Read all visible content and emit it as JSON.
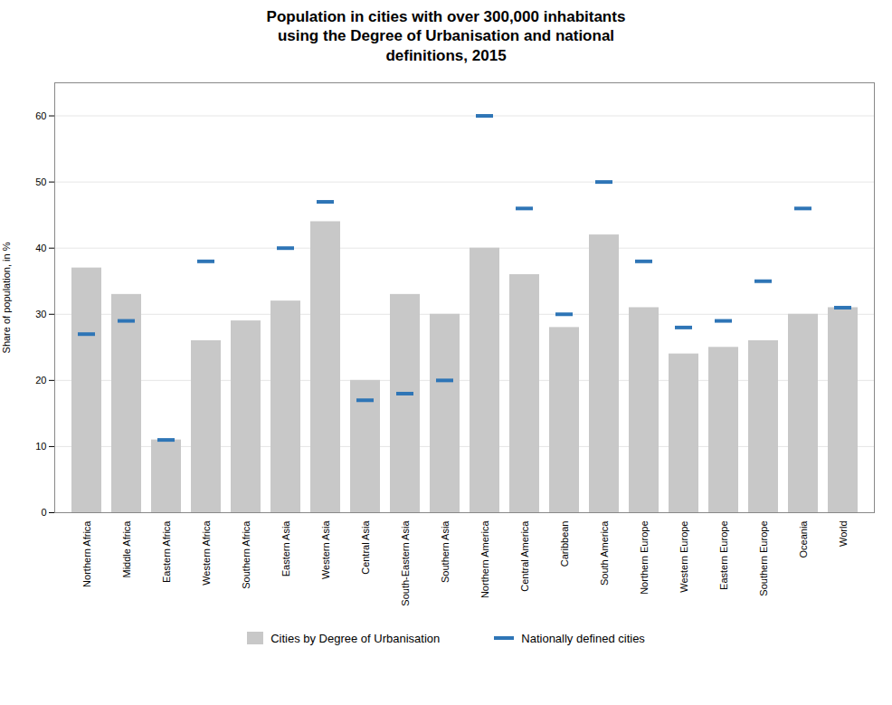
{
  "chart_data": {
    "type": "bar",
    "title": "Population in cities with over 300,000 inhabitants\nusing the Degree of Urbanisation and national\ndefinitions, 2015",
    "ylabel": "Share of population, in %",
    "categories": [
      "Northern Africa",
      "Middle Africa",
      "Eastern Africa",
      "Western Africa",
      "Southern Africa",
      "Eastern Asia",
      "Western Asia",
      "Central Asia",
      "South-Eastern Asia",
      "Southern Asia",
      "Northern America",
      "Central America",
      "Caribbean",
      "South America",
      "Northern Europe",
      "Western Europe",
      "Eastern Europe",
      "Southern Europe",
      "Oceania",
      "World"
    ],
    "series": [
      {
        "name": "Cities by Degree of Urbanisation",
        "type": "bar",
        "color": "#c8c8c8",
        "values": [
          37,
          33,
          11,
          26,
          29,
          32,
          44,
          20,
          33,
          30,
          40,
          36,
          28,
          42,
          31,
          24,
          25,
          26,
          30,
          31
        ]
      },
      {
        "name": "Nationally defined cities",
        "type": "tick",
        "color": "#2e75b6",
        "values": [
          27,
          29,
          11,
          38,
          null,
          40,
          47,
          17,
          18,
          20,
          60,
          46,
          30,
          50,
          38,
          28,
          29,
          35,
          46,
          31
        ]
      }
    ],
    "ylim": [
      0,
      65
    ],
    "yticks": [
      0,
      10,
      20,
      30,
      40,
      50,
      60
    ],
    "grid": true,
    "legend": "bottom"
  }
}
